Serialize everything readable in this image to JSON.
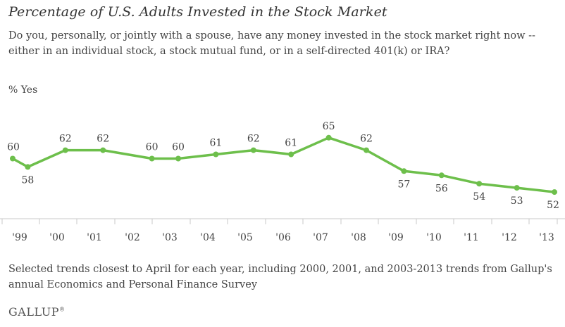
{
  "chart_data": {
    "type": "line",
    "title": "Percentage of U.S. Adults Invested in the Stock Market",
    "subtitle": "Do you, personally, or jointly with a spouse, have any money invested in the stock market right now -- either in an individual stock, a stock mutual fund, or in a self-directed 401(k) or IRA?",
    "ylabel": "% Yes",
    "x_tick_labels": [
      "'99",
      "'00",
      "'01",
      "'02",
      "'03",
      "'04",
      "'05",
      "'06",
      "'07",
      "'08",
      "'09",
      "'10",
      "'11",
      "'12",
      "'13"
    ],
    "x": [
      1998.9,
      1999.3,
      2000.3,
      2001.3,
      2002.6,
      2003.3,
      2004.3,
      2005.3,
      2006.3,
      2007.3,
      2008.3,
      2009.3,
      2010.3,
      2011.3,
      2012.3,
      2013.3
    ],
    "values": [
      60,
      58,
      62,
      62,
      60,
      60,
      61,
      62,
      61,
      65,
      62,
      57,
      56,
      54,
      53,
      52
    ],
    "ylim": [
      40,
      75
    ],
    "series_color": "#6dbf4b",
    "grid": false
  },
  "footnote": "Selected trends closest to April for each year, including 2000, 2001, and 2003-2013 trends from Gallup's annual Economics and Personal Finance Survey",
  "brand": "GALLUP",
  "brand_mark": "®"
}
